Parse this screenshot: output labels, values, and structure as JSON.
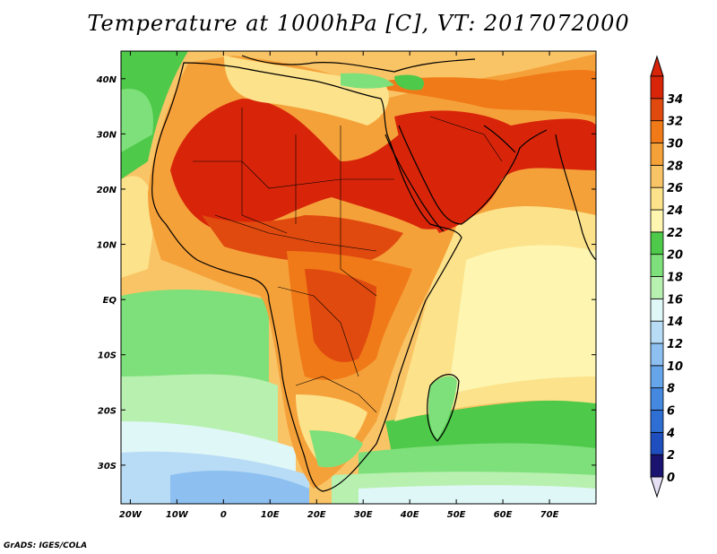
{
  "title": "Temperature at 1000hPa [C], VT: 2017072000",
  "credit": "GrADS: IGES/COLA",
  "map": {
    "lon_range": [
      -22,
      80
    ],
    "lat_range": [
      -37,
      45
    ],
    "lon_ticks": [
      {
        "value": -20,
        "label": "20W"
      },
      {
        "value": -10,
        "label": "10W"
      },
      {
        "value": 0,
        "label": "0"
      },
      {
        "value": 10,
        "label": "10E"
      },
      {
        "value": 20,
        "label": "20E"
      },
      {
        "value": 30,
        "label": "30E"
      },
      {
        "value": 40,
        "label": "40E"
      },
      {
        "value": 50,
        "label": "50E"
      },
      {
        "value": 60,
        "label": "60E"
      },
      {
        "value": 70,
        "label": "70E"
      }
    ],
    "lat_ticks": [
      {
        "value": 40,
        "label": "40N"
      },
      {
        "value": 30,
        "label": "30N"
      },
      {
        "value": 20,
        "label": "20N"
      },
      {
        "value": 10,
        "label": "10N"
      },
      {
        "value": 0,
        "label": "EQ"
      },
      {
        "value": -10,
        "label": "10S"
      },
      {
        "value": -20,
        "label": "20S"
      },
      {
        "value": -30,
        "label": "30S"
      }
    ]
  },
  "colorbar": {
    "levels": [
      0,
      2,
      4,
      6,
      8,
      10,
      12,
      14,
      16,
      18,
      20,
      22,
      24,
      26,
      28,
      30,
      32,
      34
    ],
    "colors": [
      "#1a1470",
      "#1f4fbf",
      "#2f6fd4",
      "#4488e0",
      "#66a5ea",
      "#8dc0f0",
      "#b8dcf5",
      "#e0f7f7",
      "#b8f0b0",
      "#7ee07a",
      "#4ec94a",
      "#fdf5b0",
      "#fce28a",
      "#f9c466",
      "#f5a13a",
      "#f07a18",
      "#e04a0f",
      "#d8250a"
    ],
    "under_color": "#e6e0f5",
    "over_color": "#d8250a"
  }
}
